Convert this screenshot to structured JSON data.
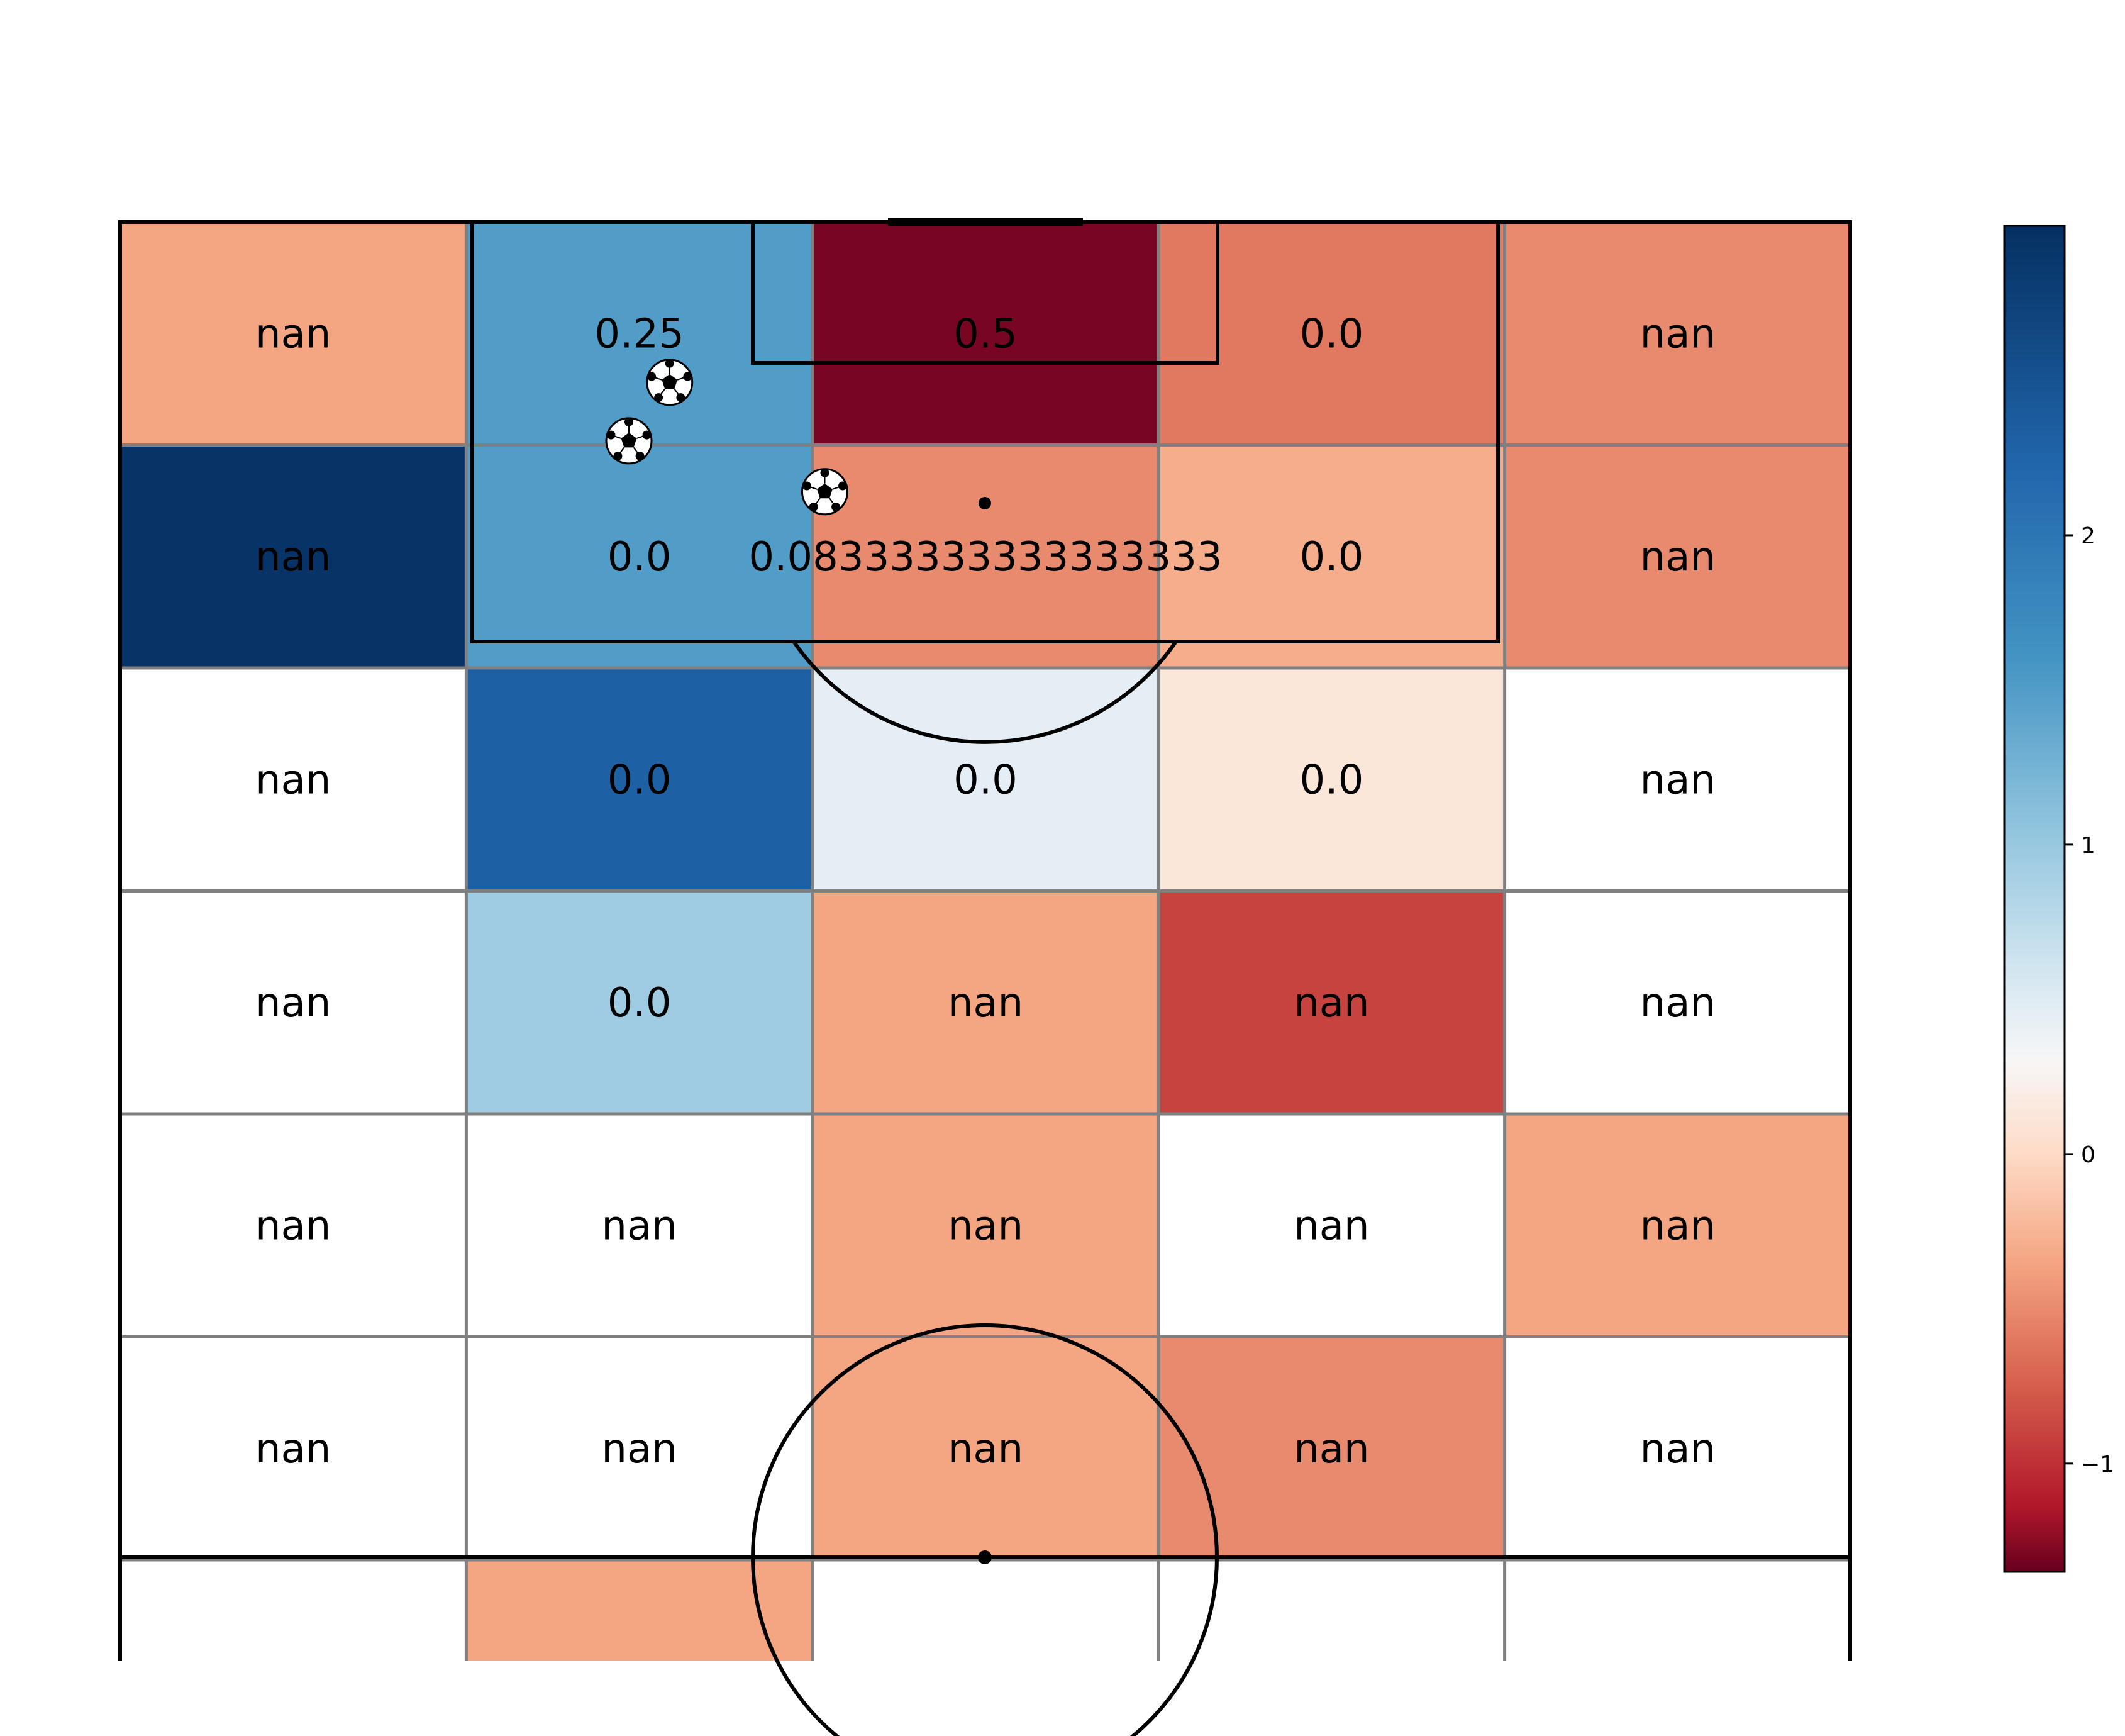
{
  "chart_data": {
    "type": "heatmap",
    "title": "",
    "xlabel": "",
    "ylabel": "",
    "grid_rows": 7,
    "grid_cols": 5,
    "labels": [
      [
        "nan",
        "0.25",
        "0.5",
        "0.0",
        "nan"
      ],
      [
        "nan",
        "0.0",
        "0.08333333333333333",
        "0.0",
        "nan"
      ],
      [
        "nan",
        "0.0",
        "0.0",
        "0.0",
        "nan"
      ],
      [
        "nan",
        "0.0",
        "nan",
        "nan",
        "nan"
      ],
      [
        "nan",
        "nan",
        "nan",
        "nan",
        "nan"
      ],
      [
        "nan",
        "nan",
        "nan",
        "nan",
        "nan"
      ],
      [
        "",
        "",
        "",
        "",
        ""
      ]
    ],
    "values": [
      [
        -0.35,
        1.5,
        -1.3,
        -0.6,
        -0.5
      ],
      [
        2.95,
        1.5,
        -0.5,
        -0.3,
        -0.5
      ],
      [
        0.0,
        2.3,
        0.45,
        0.12,
        0.0
      ],
      [
        0.0,
        0.95,
        -0.35,
        -0.9,
        0.0
      ],
      [
        0.0,
        0.0,
        -0.35,
        0.0,
        -0.35
      ],
      [
        0.0,
        0.0,
        -0.35,
        -0.5,
        0.0
      ],
      [
        0.0,
        -0.35,
        0.0,
        0.0,
        0.0
      ]
    ],
    "colorscale": "RdBu",
    "colorbar": {
      "min": -1.35,
      "max": 3.0,
      "ticks": [
        {
          "value": 2,
          "label": "2"
        },
        {
          "value": 1,
          "label": "1"
        },
        {
          "value": 0,
          "label": "0"
        },
        {
          "value": -1,
          "label": "−1"
        }
      ]
    },
    "markers": [
      {
        "type": "ball",
        "pitch_x": 21.6,
        "pitch_y": 6.3
      },
      {
        "type": "ball",
        "pitch_x": 20.0,
        "pitch_y": 8.6
      },
      {
        "type": "ball",
        "pitch_x": 27.7,
        "pitch_y": 10.6
      }
    ]
  }
}
